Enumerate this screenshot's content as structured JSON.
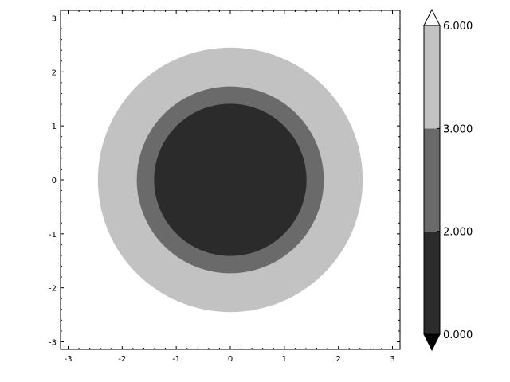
{
  "chart_data": {
    "type": "contourf",
    "title": "",
    "xlabel": "",
    "ylabel": "",
    "xlim": [
      -3.14,
      3.14
    ],
    "ylim": [
      -3.14,
      3.14
    ],
    "x_ticks": [
      -3,
      -2,
      -1,
      0,
      1,
      2,
      3
    ],
    "y_ticks": [
      -3,
      -2,
      -1,
      0,
      1,
      2,
      3
    ],
    "grid": false,
    "contour_levels": [
      0,
      2,
      3,
      6
    ],
    "level_colors": [
      "#2b2b2b",
      "#6a6a6a",
      "#c2c2c2"
    ],
    "extend": "both",
    "extend_colors": {
      "under": "#000000",
      "over": "#ffffff"
    },
    "regions": [
      {
        "range": [
          3,
          6
        ],
        "outer_radius": 2.45,
        "color": "#c2c2c2"
      },
      {
        "range": [
          2,
          3
        ],
        "outer_radius": 1.73,
        "color": "#6a6a6a"
      },
      {
        "range": [
          0,
          2
        ],
        "outer_radius": 1.41,
        "color": "#2b2b2b"
      }
    ],
    "colorbar": {
      "labels": [
        "0.000",
        "2.000",
        "3.000",
        "6.000"
      ],
      "values": [
        0,
        2,
        3,
        6
      ]
    }
  }
}
